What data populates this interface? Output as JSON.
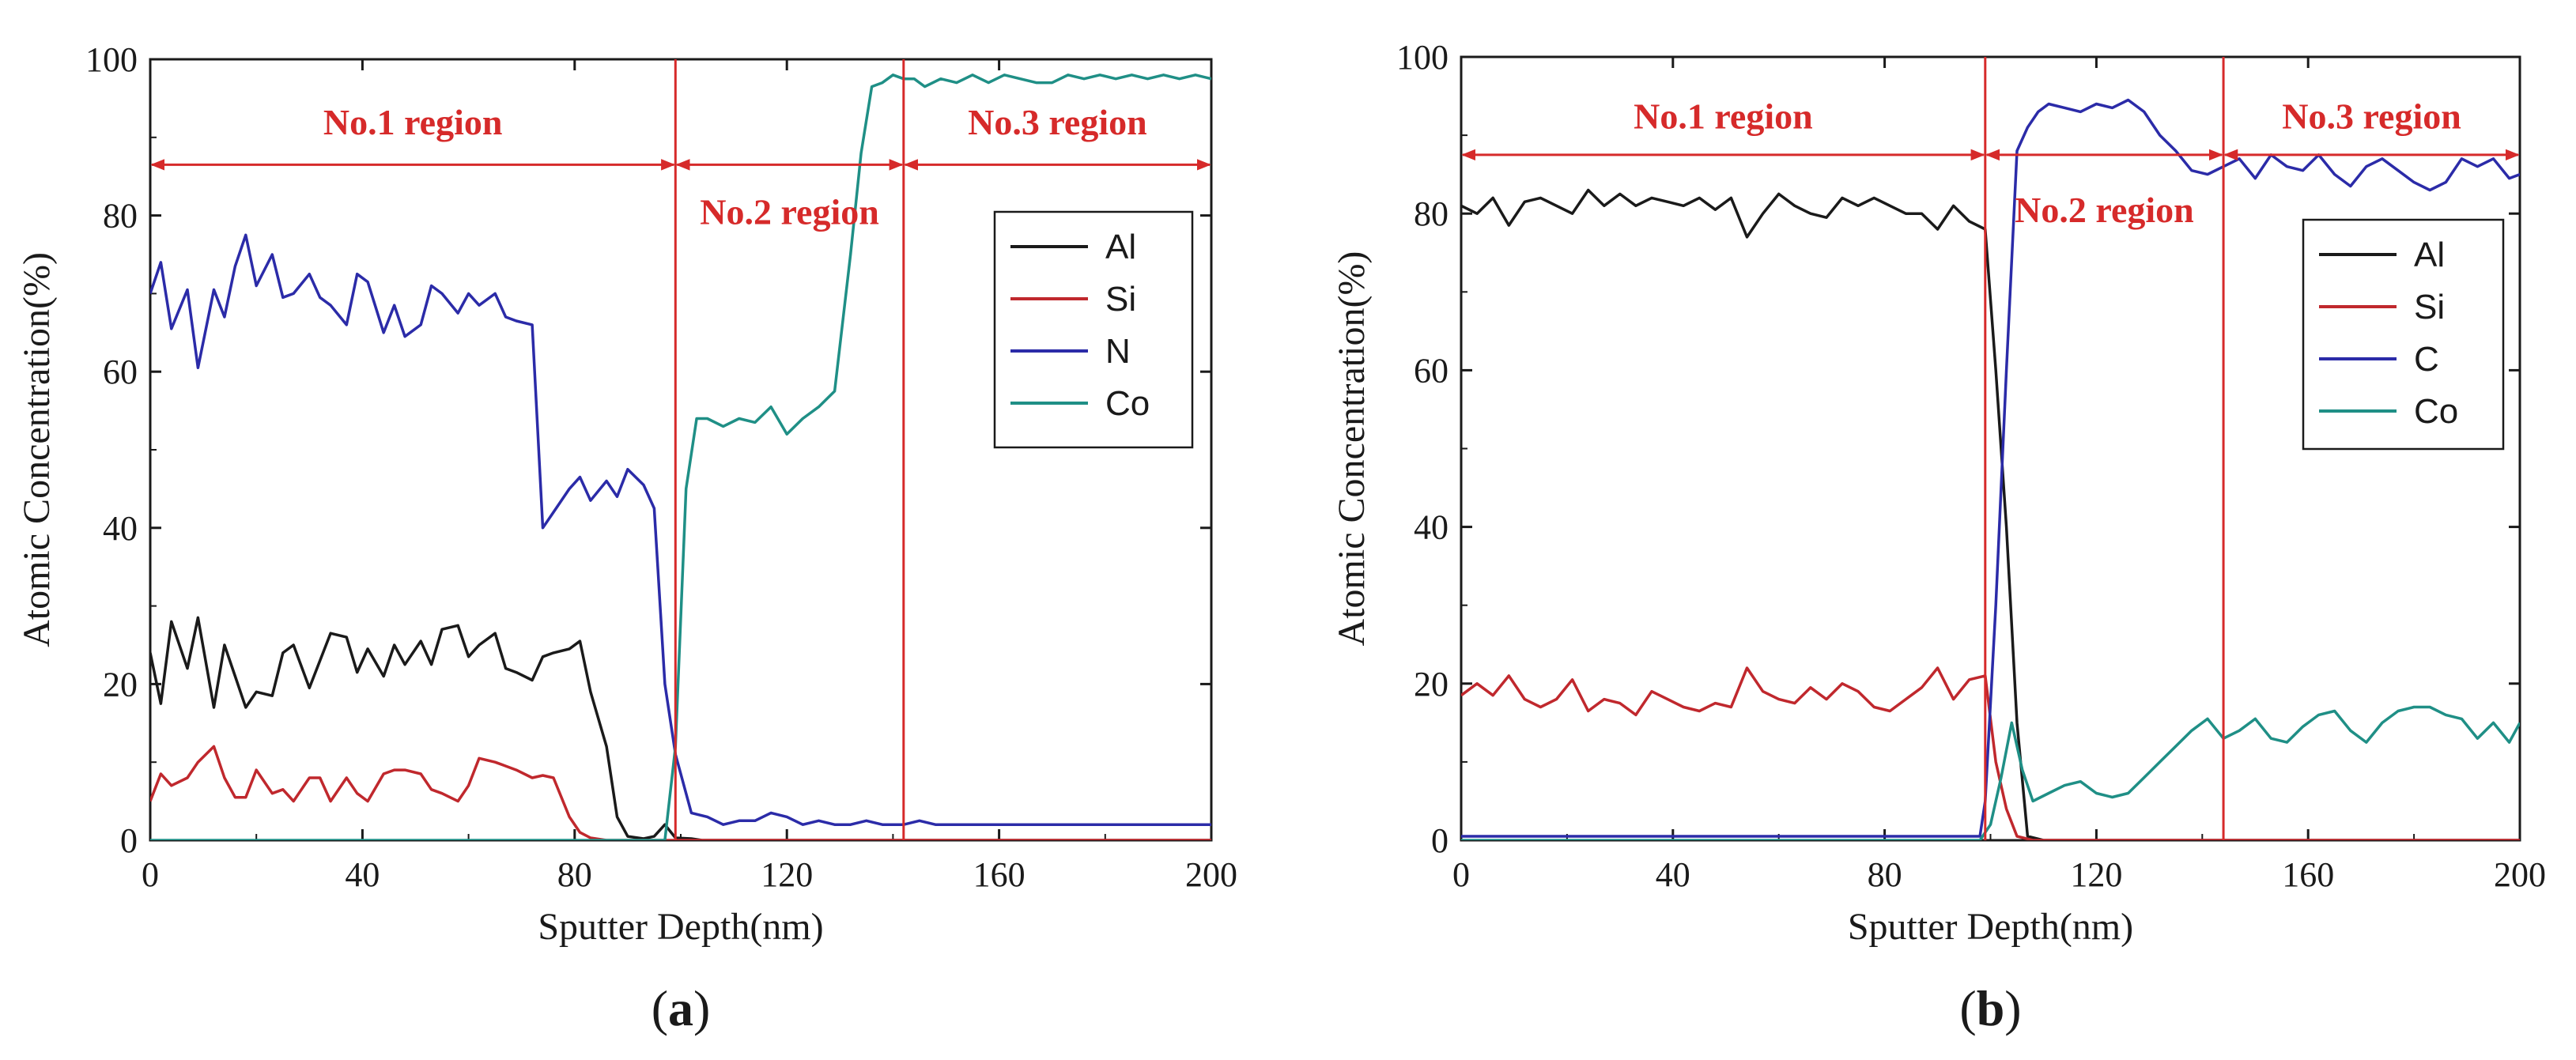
{
  "chart_data": [
    {
      "id": "a",
      "type": "line",
      "panel_label": "(a)",
      "panel_letter": "a",
      "xlabel": "Sputter Depth(nm)",
      "ylabel": "Atomic Concentration(%)",
      "xlim": [
        0,
        200
      ],
      "ylim": [
        0,
        100
      ],
      "xticks": [
        0,
        40,
        80,
        120,
        160,
        200
      ],
      "yticks": [
        0,
        20,
        40,
        60,
        80,
        100
      ],
      "legend": {
        "position": "right-middle"
      },
      "region_lines": [
        99,
        142
      ],
      "regions": [
        {
          "label": "No.1 region",
          "from": 0,
          "to": 99,
          "arrow_y": 86.5,
          "label_y": 92
        },
        {
          "label": "No.2 region",
          "from": 99,
          "to": 142,
          "arrow_y": 86.5,
          "label_y": 80.5
        },
        {
          "label": "No.3 region",
          "from": 142,
          "to": 200,
          "arrow_y": 86.5,
          "label_y": 92
        }
      ],
      "series": [
        {
          "name": "Al",
          "color": "#1a1a1a",
          "x": [
            0,
            2,
            4,
            7,
            9,
            12,
            14,
            16,
            18,
            20,
            23,
            25,
            27,
            30,
            32,
            34,
            37,
            39,
            41,
            44,
            46,
            48,
            51,
            53,
            55,
            58,
            60,
            62,
            65,
            67,
            69,
            72,
            74,
            76,
            79,
            81,
            83,
            86,
            88,
            90,
            93,
            95,
            97,
            99,
            102,
            104,
            107,
            109,
            111,
            114,
            116,
            118,
            121,
            123,
            125,
            128,
            130,
            132,
            135,
            137,
            140,
            142,
            145,
            150,
            155,
            160,
            165,
            170,
            175,
            180,
            185,
            190,
            195,
            200
          ],
          "y": [
            24,
            17.5,
            28,
            22,
            28.5,
            17,
            25,
            21,
            17,
            19,
            18.5,
            24,
            25,
            19.5,
            23,
            26.5,
            26,
            21.5,
            24.5,
            21,
            25,
            22.5,
            25.5,
            22.5,
            27,
            27.5,
            23.5,
            25,
            26.5,
            22,
            21.5,
            20.5,
            23.5,
            24,
            24.5,
            25.5,
            19,
            12,
            3,
            0.5,
            0.2,
            0.5,
            2,
            0.3,
            0.2,
            0,
            0,
            0,
            0,
            0,
            0,
            0,
            0,
            0,
            0,
            0,
            0,
            0,
            0,
            0,
            0,
            0,
            0,
            0,
            0,
            0,
            0,
            0,
            0,
            0,
            0,
            0,
            0,
            0
          ]
        },
        {
          "name": "Si",
          "color": "#c0282d",
          "x": [
            0,
            2,
            4,
            7,
            9,
            12,
            14,
            16,
            18,
            20,
            23,
            25,
            27,
            30,
            32,
            34,
            37,
            39,
            41,
            44,
            46,
            48,
            51,
            53,
            55,
            58,
            60,
            62,
            65,
            67,
            69,
            72,
            74,
            76,
            79,
            81,
            83,
            86,
            88,
            90,
            93,
            95,
            97,
            99,
            102,
            104,
            107,
            110,
            115,
            120,
            130,
            140,
            150,
            160,
            170,
            180,
            190,
            200
          ],
          "y": [
            5,
            8.5,
            7,
            8,
            10,
            12,
            8,
            5.5,
            5.5,
            9,
            6,
            6.5,
            5,
            8,
            8,
            5,
            8,
            6,
            5,
            8.5,
            9,
            9,
            8.5,
            6.5,
            6,
            5,
            7,
            10.5,
            10,
            9.5,
            9,
            8,
            8.3,
            8,
            3,
            1,
            0.3,
            0,
            0,
            0,
            0,
            0,
            0,
            0,
            0,
            0,
            0,
            0,
            0,
            0,
            0,
            0,
            0,
            0,
            0,
            0,
            0,
            0
          ]
        },
        {
          "name": "N",
          "color": "#2b2ba8",
          "x": [
            0,
            2,
            4,
            7,
            9,
            12,
            14,
            16,
            18,
            20,
            23,
            25,
            27,
            30,
            32,
            34,
            37,
            39,
            41,
            44,
            46,
            48,
            51,
            53,
            55,
            58,
            60,
            62,
            65,
            67,
            69,
            72,
            74,
            76,
            79,
            81,
            83,
            86,
            88,
            90,
            93,
            95,
            97,
            99,
            102,
            105,
            108,
            111,
            114,
            117,
            120,
            123,
            126,
            129,
            132,
            135,
            138,
            140,
            142,
            145,
            148,
            151,
            155,
            158,
            161,
            164,
            167,
            170,
            173,
            176,
            179,
            182,
            185,
            188,
            191,
            194,
            197,
            200
          ],
          "y": [
            70,
            74,
            65.5,
            70.5,
            60.5,
            70.5,
            67,
            73.5,
            77.5,
            71,
            75,
            69.5,
            70,
            72.5,
            69.5,
            68.5,
            66,
            72.5,
            71.5,
            65,
            68.5,
            64.5,
            66,
            71,
            70,
            67.5,
            70,
            68.5,
            70,
            67,
            66.5,
            66,
            40,
            42,
            45,
            46.5,
            43.5,
            46,
            44,
            47.5,
            45.5,
            42.5,
            20,
            11,
            3.5,
            3,
            2,
            2.5,
            2.5,
            3.5,
            3,
            2,
            2.5,
            2,
            2,
            2.5,
            2,
            2,
            2,
            2.5,
            2,
            2,
            2,
            2,
            2,
            2,
            2,
            2,
            2,
            2,
            2,
            2,
            2,
            2,
            2,
            2,
            2,
            2
          ]
        },
        {
          "name": "Co",
          "color": "#1f8f86",
          "x": [
            0,
            10,
            20,
            30,
            40,
            50,
            60,
            70,
            80,
            90,
            97,
            99,
            101,
            103,
            105,
            108,
            111,
            114,
            117,
            120,
            123,
            126,
            129,
            132,
            134,
            136,
            138,
            140,
            142,
            144,
            146,
            149,
            152,
            155,
            158,
            161,
            164,
            167,
            170,
            173,
            176,
            179,
            182,
            185,
            188,
            191,
            194,
            197,
            200
          ],
          "y": [
            0,
            0,
            0,
            0,
            0,
            0,
            0,
            0,
            0,
            0,
            0,
            12,
            45,
            54,
            54,
            53,
            54,
            53.5,
            55.5,
            52,
            54,
            55.5,
            57.5,
            75,
            88,
            96.5,
            97,
            98,
            97.5,
            97.5,
            96.5,
            97.5,
            97,
            98,
            97,
            98,
            97.5,
            97,
            97,
            98,
            97.5,
            98,
            97.5,
            98,
            97.5,
            98,
            97.5,
            98,
            97.5
          ]
        }
      ]
    },
    {
      "id": "b",
      "type": "line",
      "panel_label": "(b)",
      "panel_letter": "b",
      "xlabel": "Sputter Depth(nm)",
      "ylabel": "Atomic Concentration(%)",
      "xlim": [
        0,
        200
      ],
      "ylim": [
        0,
        100
      ],
      "xticks": [
        0,
        40,
        80,
        120,
        160,
        200
      ],
      "yticks": [
        0,
        20,
        40,
        60,
        80,
        100
      ],
      "legend": {
        "position": "right-middle"
      },
      "region_lines": [
        99,
        144
      ],
      "regions": [
        {
          "label": "No.1 region",
          "from": 0,
          "to": 99,
          "arrow_y": 87.5,
          "label_y": 92.5
        },
        {
          "label": "No.2 region",
          "from": 99,
          "to": 144,
          "arrow_y": 87.5,
          "label_y": 80.5
        },
        {
          "label": "No.3 region",
          "from": 144,
          "to": 200,
          "arrow_y": 87.5,
          "label_y": 92.5
        }
      ],
      "series": [
        {
          "name": "Al",
          "color": "#1a1a1a",
          "x": [
            0,
            3,
            6,
            9,
            12,
            15,
            18,
            21,
            24,
            27,
            30,
            33,
            36,
            39,
            42,
            45,
            48,
            51,
            54,
            57,
            60,
            63,
            66,
            69,
            72,
            75,
            78,
            81,
            84,
            87,
            90,
            93,
            96,
            99,
            101,
            103,
            105,
            107,
            110,
            120,
            140,
            160,
            180,
            200
          ],
          "y": [
            81,
            80,
            82,
            78.5,
            81.5,
            82,
            81,
            80,
            83,
            81,
            82.5,
            81,
            82,
            81.5,
            81,
            82,
            80.5,
            82,
            77,
            80,
            82.5,
            81,
            80,
            79.5,
            82,
            81,
            82,
            81,
            80,
            80,
            78,
            81,
            79,
            78,
            60,
            40,
            15,
            0.5,
            0,
            0,
            0,
            0,
            0,
            0
          ]
        },
        {
          "name": "Si",
          "color": "#c0282d",
          "x": [
            0,
            3,
            6,
            9,
            12,
            15,
            18,
            21,
            24,
            27,
            30,
            33,
            36,
            39,
            42,
            45,
            48,
            51,
            54,
            57,
            60,
            63,
            66,
            69,
            72,
            75,
            78,
            81,
            84,
            87,
            90,
            93,
            96,
            99,
            101,
            103,
            105,
            108,
            115,
            130,
            150,
            170,
            190,
            200
          ],
          "y": [
            18.5,
            20,
            18.5,
            21,
            18,
            17,
            18,
            20.5,
            16.5,
            18,
            17.5,
            16,
            19,
            18,
            17,
            16.5,
            17.5,
            17,
            22,
            19,
            18,
            17.5,
            19.5,
            18,
            20,
            19,
            17,
            16.5,
            18,
            19.5,
            22,
            18,
            20.5,
            21,
            10,
            4,
            0.5,
            0,
            0,
            0,
            0,
            0,
            0,
            0
          ]
        },
        {
          "name": "C",
          "color": "#2b2ba8",
          "x": [
            0,
            10,
            20,
            30,
            40,
            50,
            60,
            70,
            80,
            90,
            98,
            99,
            101,
            103,
            105,
            107,
            109,
            111,
            114,
            117,
            120,
            123,
            126,
            129,
            132,
            135,
            138,
            141,
            144,
            147,
            150,
            153,
            156,
            159,
            162,
            165,
            168,
            171,
            174,
            177,
            180,
            183,
            186,
            189,
            192,
            195,
            198,
            200
          ],
          "y": [
            0.5,
            0.5,
            0.5,
            0.5,
            0.5,
            0.5,
            0.5,
            0.5,
            0.5,
            0.5,
            0.5,
            5,
            30,
            60,
            88,
            91,
            93,
            94,
            93.5,
            93,
            94,
            93.5,
            94.5,
            93,
            90,
            88,
            85.5,
            85,
            86,
            87,
            84.5,
            87.5,
            86,
            85.5,
            87.5,
            85,
            83.5,
            86,
            87,
            85.5,
            84,
            83,
            84,
            87,
            86,
            87,
            84.5,
            85
          ]
        },
        {
          "name": "Co",
          "color": "#1f8f86",
          "x": [
            0,
            10,
            20,
            30,
            40,
            50,
            60,
            70,
            80,
            90,
            98,
            100,
            102,
            104,
            106,
            108,
            111,
            114,
            117,
            120,
            123,
            126,
            129,
            132,
            135,
            138,
            141,
            144,
            147,
            150,
            153,
            156,
            159,
            162,
            165,
            168,
            171,
            174,
            177,
            180,
            183,
            186,
            189,
            192,
            195,
            198,
            200
          ],
          "y": [
            0,
            0,
            0,
            0,
            0,
            0,
            0,
            0,
            0,
            0,
            0,
            2,
            8,
            15,
            9,
            5,
            6,
            7,
            7.5,
            6,
            5.5,
            6,
            8,
            10,
            12,
            14,
            15.5,
            13,
            14,
            15.5,
            13,
            12.5,
            14.5,
            16,
            16.5,
            14,
            12.5,
            15,
            16.5,
            17,
            17,
            16,
            15.5,
            13,
            15,
            12.5,
            15
          ]
        }
      ]
    }
  ]
}
